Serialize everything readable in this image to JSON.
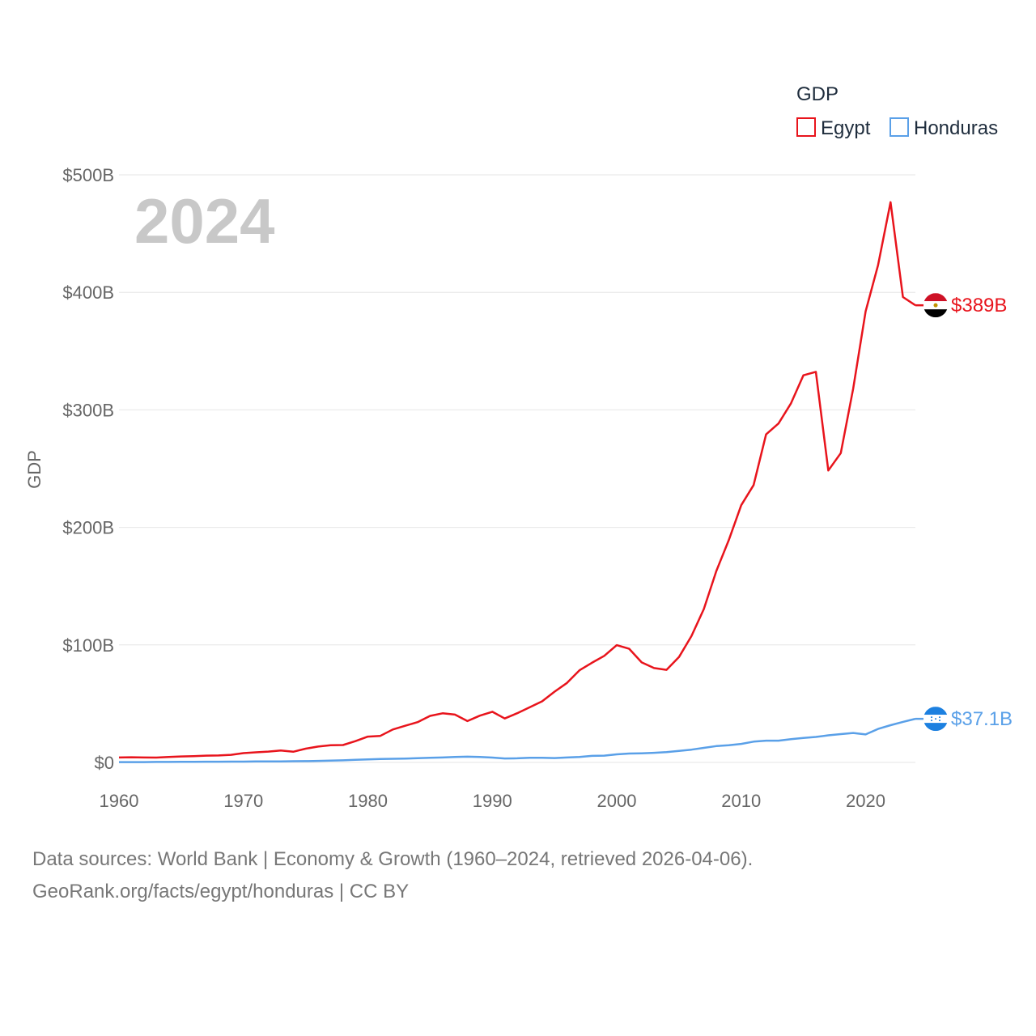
{
  "chart_data": {
    "type": "line",
    "title": "GDP",
    "ylabel": "GDP",
    "xlabel": "",
    "year_label": "2024",
    "xlim": [
      1960,
      2024
    ],
    "ylim": [
      0,
      500
    ],
    "x_ticks": [
      1960,
      1970,
      1980,
      1990,
      2000,
      2010,
      2020
    ],
    "x_tick_labels": [
      "1960",
      "1970",
      "1980",
      "1990",
      "2000",
      "2010",
      "2020"
    ],
    "y_ticks": [
      0,
      100,
      200,
      300,
      400,
      500
    ],
    "y_tick_labels": [
      "$0",
      "$100B",
      "$200B",
      "$300B",
      "$400B",
      "$500B"
    ],
    "unit": "billion USD",
    "x": [
      1960,
      1961,
      1962,
      1963,
      1964,
      1965,
      1966,
      1967,
      1968,
      1969,
      1970,
      1971,
      1972,
      1973,
      1974,
      1975,
      1976,
      1977,
      1978,
      1979,
      1980,
      1981,
      1982,
      1983,
      1984,
      1985,
      1986,
      1987,
      1988,
      1989,
      1990,
      1991,
      1992,
      1993,
      1994,
      1995,
      1996,
      1997,
      1998,
      1999,
      2000,
      2001,
      2002,
      2003,
      2004,
      2005,
      2006,
      2007,
      2008,
      2009,
      2010,
      2011,
      2012,
      2013,
      2014,
      2015,
      2016,
      2017,
      2018,
      2019,
      2020,
      2021,
      2022,
      2023,
      2024
    ],
    "series": [
      {
        "name": "Egypt",
        "color": "#e8141c",
        "end_label": "$389B",
        "flag": "egypt-flag-icon",
        "values": [
          4.2,
          4.4,
          4.2,
          4.1,
          4.6,
          5.1,
          5.4,
          5.8,
          5.9,
          6.5,
          7.9,
          8.6,
          9.2,
          10.2,
          9.1,
          11.7,
          13.5,
          14.6,
          14.8,
          18.1,
          22.0,
          22.6,
          28.0,
          31.2,
          34.3,
          39.6,
          41.8,
          40.7,
          35.2,
          39.8,
          43.1,
          37.4,
          41.9,
          46.9,
          52.0,
          60.2,
          67.6,
          78.4,
          84.8,
          90.7,
          99.8,
          96.7,
          85.1,
          80.3,
          78.8,
          89.7,
          107.5,
          130.5,
          162.8,
          189.1,
          218.9,
          236.0,
          279.1,
          288.4,
          305.6,
          329.4,
          332.4,
          248.4,
          263.2,
          318.0,
          383.8,
          423.3,
          476.7,
          396.0,
          389.0
        ]
      },
      {
        "name": "Honduras",
        "color": "#5aa0e8",
        "end_label": "$37.1B",
        "flag": "honduras-flag-icon",
        "values": [
          0.3,
          0.3,
          0.3,
          0.4,
          0.4,
          0.5,
          0.5,
          0.6,
          0.6,
          0.7,
          0.7,
          0.8,
          0.8,
          0.9,
          1.0,
          1.1,
          1.3,
          1.5,
          1.8,
          2.2,
          2.6,
          2.9,
          3.1,
          3.3,
          3.6,
          3.9,
          4.2,
          4.6,
          4.9,
          4.7,
          4.1,
          3.4,
          3.5,
          3.9,
          3.9,
          3.7,
          4.2,
          4.7,
          5.6,
          5.8,
          6.9,
          7.6,
          7.8,
          8.2,
          8.8,
          9.8,
          10.9,
          12.4,
          13.9,
          14.6,
          15.8,
          17.7,
          18.5,
          18.5,
          19.8,
          20.9,
          21.7,
          23.1,
          24.1,
          25.1,
          23.8,
          28.5,
          31.7,
          34.5,
          37.1
        ]
      }
    ],
    "legend": {
      "title": "GDP",
      "position": "top-right",
      "entries": [
        "Egypt",
        "Honduras"
      ]
    }
  },
  "footer": {
    "line1": "Data sources: World Bank | Economy & Growth (1960–2024, retrieved 2026-04-06).",
    "line2": "GeoRank.org/facts/egypt/honduras | CC BY"
  }
}
